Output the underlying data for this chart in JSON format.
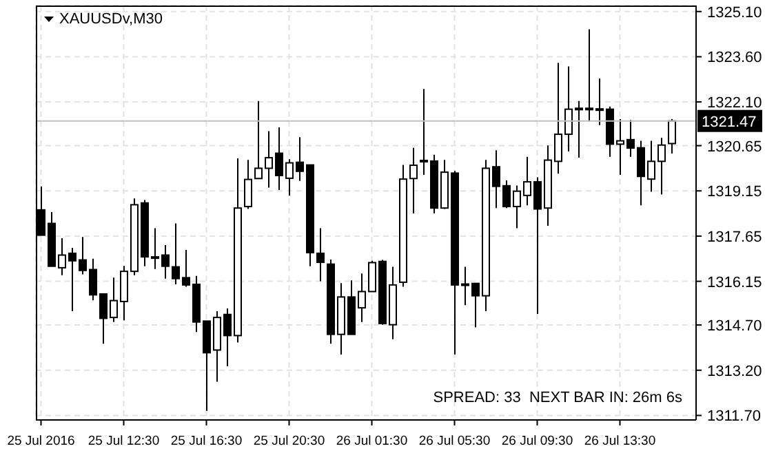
{
  "chart_data": {
    "type": "candlestick",
    "title": "XAUUSDv,M30",
    "categories": [
      "25 Jul 2016",
      null,
      null,
      null,
      null,
      null,
      null,
      null,
      "25 Jul 12:30",
      null,
      null,
      null,
      null,
      null,
      null,
      null,
      "25 Jul 16:30",
      null,
      null,
      null,
      null,
      null,
      null,
      null,
      "25 Jul 20:30",
      null,
      null,
      null,
      null,
      null,
      null,
      null,
      "26 Jul 01:30",
      null,
      null,
      null,
      null,
      null,
      null,
      null,
      "26 Jul 05:30",
      null,
      null,
      null,
      null,
      null,
      null,
      null,
      "26 Jul 09:30",
      null,
      null,
      null,
      null,
      null,
      null,
      null,
      "26 Jul 13:30",
      null,
      null,
      null,
      null,
      null
    ],
    "ohlc": [
      [
        1318.52,
        1319.3,
        1317.68,
        1317.68
      ],
      [
        1318.07,
        1318.45,
        1316.65,
        1316.65
      ],
      [
        1316.6,
        1317.58,
        1316.35,
        1317.02
      ],
      [
        1317.08,
        1317.26,
        1315.16,
        1316.83
      ],
      [
        1316.86,
        1317.62,
        1316.38,
        1316.51
      ],
      [
        1316.54,
        1316.9,
        1315.52,
        1315.7
      ],
      [
        1315.73,
        1315.73,
        1314.08,
        1314.92
      ],
      [
        1314.95,
        1316.27,
        1314.8,
        1315.51
      ],
      [
        1315.48,
        1316.66,
        1314.85,
        1316.48
      ],
      [
        1316.48,
        1318.9,
        1316.35,
        1318.69
      ],
      [
        1318.75,
        1318.85,
        1316.65,
        1316.96
      ],
      [
        1316.96,
        1317.91,
        1316.56,
        1316.96
      ],
      [
        1317.02,
        1317.35,
        1316.24,
        1316.65
      ],
      [
        1316.63,
        1318.07,
        1316.05,
        1316.24
      ],
      [
        1316.27,
        1317.19,
        1315.97,
        1316.03
      ],
      [
        1316.05,
        1316.33,
        1314.47,
        1314.8
      ],
      [
        1314.83,
        1314.83,
        1311.85,
        1313.78
      ],
      [
        1313.87,
        1315.16,
        1312.82,
        1314.95
      ],
      [
        1315.05,
        1315.25,
        1313.33,
        1314.35
      ],
      [
        1314.35,
        1320.23,
        1314.12,
        1318.58
      ],
      [
        1318.63,
        1320.18,
        1318.55,
        1319.53
      ],
      [
        1319.56,
        1322.13,
        1319.56,
        1319.9
      ],
      [
        1319.9,
        1321.13,
        1319.26,
        1320.25
      ],
      [
        1320.4,
        1321.26,
        1319.18,
        1319.66
      ],
      [
        1319.57,
        1320.2,
        1318.99,
        1320.08
      ],
      [
        1320.1,
        1320.93,
        1319.48,
        1319.8
      ],
      [
        1320.01,
        1320.01,
        1316.65,
        1317.1
      ],
      [
        1317.08,
        1317.91,
        1316.15,
        1316.78
      ],
      [
        1316.72,
        1316.87,
        1314.08,
        1314.39
      ],
      [
        1314.39,
        1316.09,
        1313.72,
        1315.63
      ],
      [
        1315.63,
        1316.18,
        1314.39,
        1314.39
      ],
      [
        1315.27,
        1316.41,
        1314.8,
        1315.81
      ],
      [
        1315.81,
        1316.83,
        1315.81,
        1316.77
      ],
      [
        1316.81,
        1316.86,
        1314.71,
        1314.75
      ],
      [
        1314.71,
        1316.63,
        1314.23,
        1316.03
      ],
      [
        1316.12,
        1320.01,
        1315.97,
        1319.54
      ],
      [
        1319.56,
        1320.58,
        1318.4,
        1320.0
      ],
      [
        1320.14,
        1322.53,
        1319.68,
        1320.16
      ],
      [
        1320.14,
        1320.35,
        1318.4,
        1318.58
      ],
      [
        1318.58,
        1320.18,
        1318.55,
        1319.77
      ],
      [
        1319.74,
        1319.81,
        1313.72,
        1316.03
      ],
      [
        1316.06,
        1316.63,
        1315.36,
        1316.04
      ],
      [
        1316.08,
        1316.08,
        1314.62,
        1315.67
      ],
      [
        1315.67,
        1320.18,
        1315.16,
        1319.9
      ],
      [
        1319.95,
        1320.5,
        1318.58,
        1319.3
      ],
      [
        1319.32,
        1319.5,
        1318.58,
        1318.63
      ],
      [
        1318.63,
        1319.33,
        1317.91,
        1319.14
      ],
      [
        1319.0,
        1320.28,
        1318.67,
        1319.45
      ],
      [
        1319.45,
        1319.6,
        1315.07,
        1318.55
      ],
      [
        1318.58,
        1320.66,
        1317.99,
        1320.17
      ],
      [
        1320.13,
        1323.4,
        1319.72,
        1321.03
      ],
      [
        1321.03,
        1323.28,
        1320.46,
        1321.86
      ],
      [
        1321.87,
        1322.13,
        1320.25,
        1321.89
      ],
      [
        1321.89,
        1324.51,
        1321.45,
        1321.87
      ],
      [
        1321.87,
        1322.88,
        1321.33,
        1321.86
      ],
      [
        1321.86,
        1321.95,
        1320.28,
        1320.7
      ],
      [
        1320.7,
        1321.53,
        1319.68,
        1320.81
      ],
      [
        1320.85,
        1321.5,
        1320.28,
        1320.57
      ],
      [
        1320.58,
        1320.81,
        1318.67,
        1319.63
      ],
      [
        1319.54,
        1320.81,
        1319.12,
        1320.13
      ],
      [
        1320.13,
        1320.91,
        1319.03,
        1320.67
      ],
      [
        1320.72,
        1321.53,
        1320.39,
        1321.47
      ]
    ],
    "colors": [
      "#000000",
      "#000000",
      "#ffffff",
      "#000000",
      "#000000",
      "#000000",
      "#000000",
      "#ffffff",
      "#ffffff",
      "#ffffff",
      "#000000",
      "#000000",
      "#000000",
      "#000000",
      "#000000",
      "#000000",
      "#000000",
      "#ffffff",
      "#000000",
      "#ffffff",
      "#ffffff",
      "#ffffff",
      "#ffffff",
      "#000000",
      "#ffffff",
      "#000000",
      "#000000",
      "#000000",
      "#000000",
      "#ffffff",
      "#000000",
      "#ffffff",
      "#ffffff",
      "#000000",
      "#ffffff",
      "#ffffff",
      "#ffffff",
      "#ffffff",
      "#000000",
      "#ffffff",
      "#000000",
      "#000000",
      "#000000",
      "#ffffff",
      "#000000",
      "#000000",
      "#ffffff",
      "#ffffff",
      "#000000",
      "#ffffff",
      "#ffffff",
      "#ffffff",
      "#ffffff",
      "#000000",
      "#000000",
      "#000000",
      "#ffffff",
      "#000000",
      "#000000",
      "#ffffff",
      "#ffffff",
      "#ffffff"
    ],
    "ylim": [
      1311.55,
      1325.3
    ],
    "yticks": [
      {
        "value": 1311.7,
        "label": "1311.70"
      },
      {
        "value": 1313.2,
        "label": "1313.20"
      },
      {
        "value": 1314.7,
        "label": "1314.70"
      },
      {
        "value": 1316.15,
        "label": "1316.15"
      },
      {
        "value": 1317.65,
        "label": "1317.65"
      },
      {
        "value": 1319.15,
        "label": "1319.15"
      },
      {
        "value": 1320.65,
        "label": "1320.65"
      },
      {
        "value": 1322.1,
        "label": "1322.10"
      },
      {
        "value": 1323.6,
        "label": "1323.60"
      },
      {
        "value": 1325.1,
        "label": "1325.10"
      }
    ],
    "ref_lines": [
      {
        "axis": "y",
        "value": 1321.47,
        "label": "1321.47",
        "color": "#c0c0c0"
      }
    ],
    "annotations": [
      "SPREAD: 33  NEXT BAR IN: 26m 6s"
    ],
    "grid": true
  }
}
